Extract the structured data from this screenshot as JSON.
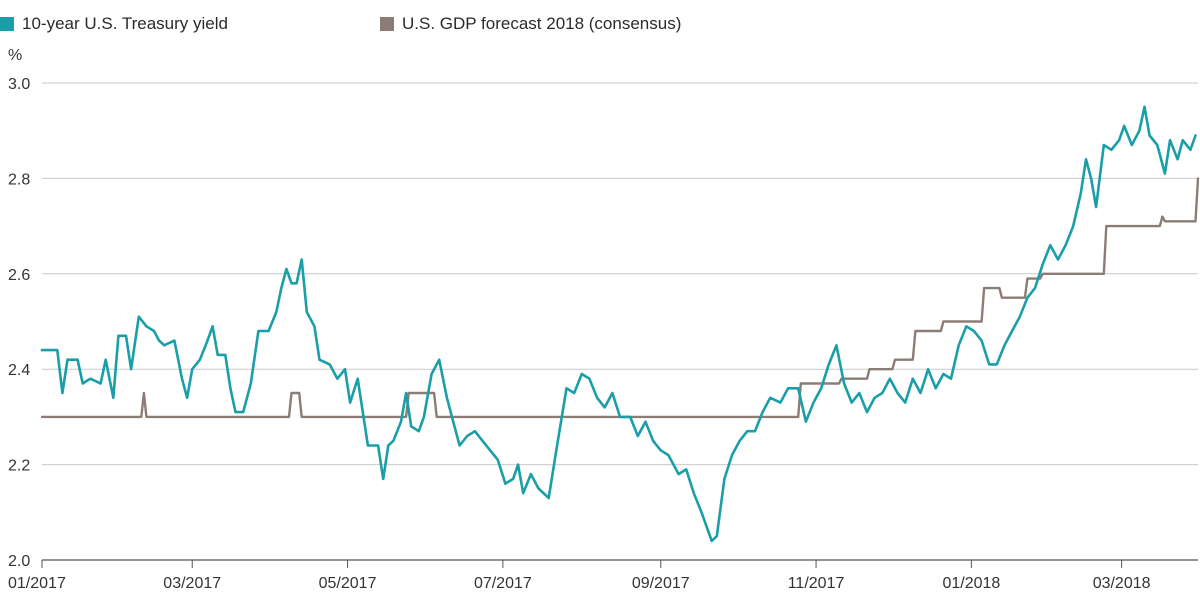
{
  "chart_data": {
    "type": "line",
    "title": "",
    "xlabel": "",
    "ylabel": "%",
    "ylim": [
      2.0,
      3.0
    ],
    "yticks": [
      "2.0",
      "2.2",
      "2.4",
      "2.6",
      "2.8",
      "3.0"
    ],
    "xticks": [
      "01/2017",
      "03/2017",
      "05/2017",
      "07/2017",
      "09/2017",
      "11/2017",
      "01/2018",
      "03/2018"
    ],
    "xrange": [
      "2017-01-01",
      "2018-03-31"
    ],
    "grid": "horizontal",
    "legend": "top-left",
    "series": [
      {
        "name": "10-year U.S. Treasury yield",
        "color": "#1a9ea8",
        "points": [
          [
            "2017-01-01",
            2.44
          ],
          [
            "2017-01-07",
            2.44
          ],
          [
            "2017-01-09",
            2.35
          ],
          [
            "2017-01-11",
            2.42
          ],
          [
            "2017-01-15",
            2.42
          ],
          [
            "2017-01-17",
            2.37
          ],
          [
            "2017-01-20",
            2.38
          ],
          [
            "2017-01-24",
            2.37
          ],
          [
            "2017-01-26",
            2.42
          ],
          [
            "2017-01-29",
            2.34
          ],
          [
            "2017-01-31",
            2.47
          ],
          [
            "2017-02-03",
            2.47
          ],
          [
            "2017-02-05",
            2.4
          ],
          [
            "2017-02-08",
            2.51
          ],
          [
            "2017-02-11",
            2.49
          ],
          [
            "2017-02-14",
            2.48
          ],
          [
            "2017-02-16",
            2.46
          ],
          [
            "2017-02-18",
            2.45
          ],
          [
            "2017-02-22",
            2.46
          ],
          [
            "2017-02-25",
            2.38
          ],
          [
            "2017-02-27",
            2.34
          ],
          [
            "2017-03-01",
            2.4
          ],
          [
            "2017-03-04",
            2.42
          ],
          [
            "2017-03-07",
            2.46
          ],
          [
            "2017-03-09",
            2.49
          ],
          [
            "2017-03-11",
            2.43
          ],
          [
            "2017-03-14",
            2.43
          ],
          [
            "2017-03-16",
            2.36
          ],
          [
            "2017-03-18",
            2.31
          ],
          [
            "2017-03-21",
            2.31
          ],
          [
            "2017-03-24",
            2.37
          ],
          [
            "2017-03-27",
            2.48
          ],
          [
            "2017-03-31",
            2.48
          ],
          [
            "2017-04-03",
            2.52
          ],
          [
            "2017-04-05",
            2.57
          ],
          [
            "2017-04-07",
            2.61
          ],
          [
            "2017-04-09",
            2.58
          ],
          [
            "2017-04-11",
            2.58
          ],
          [
            "2017-04-13",
            2.63
          ],
          [
            "2017-04-15",
            2.52
          ],
          [
            "2017-04-18",
            2.49
          ],
          [
            "2017-04-20",
            2.42
          ],
          [
            "2017-04-24",
            2.41
          ],
          [
            "2017-04-27",
            2.38
          ],
          [
            "2017-04-30",
            2.4
          ],
          [
            "2017-05-02",
            2.33
          ],
          [
            "2017-05-05",
            2.38
          ],
          [
            "2017-05-09",
            2.24
          ],
          [
            "2017-05-13",
            2.24
          ],
          [
            "2017-05-15",
            2.17
          ],
          [
            "2017-05-17",
            2.24
          ],
          [
            "2017-05-19",
            2.25
          ],
          [
            "2017-05-22",
            2.29
          ],
          [
            "2017-05-24",
            2.35
          ],
          [
            "2017-05-26",
            2.28
          ],
          [
            "2017-05-29",
            2.27
          ],
          [
            "2017-05-31",
            2.3
          ],
          [
            "2017-06-03",
            2.39
          ],
          [
            "2017-06-06",
            2.42
          ],
          [
            "2017-06-09",
            2.34
          ],
          [
            "2017-06-12",
            2.28
          ],
          [
            "2017-06-14",
            2.24
          ],
          [
            "2017-06-17",
            2.26
          ],
          [
            "2017-06-20",
            2.27
          ],
          [
            "2017-06-23",
            2.25
          ],
          [
            "2017-06-26",
            2.23
          ],
          [
            "2017-06-29",
            2.21
          ],
          [
            "2017-07-02",
            2.16
          ],
          [
            "2017-07-05",
            2.17
          ],
          [
            "2017-07-07",
            2.2
          ],
          [
            "2017-07-09",
            2.14
          ],
          [
            "2017-07-12",
            2.18
          ],
          [
            "2017-07-15",
            2.15
          ],
          [
            "2017-07-19",
            2.13
          ],
          [
            "2017-07-22",
            2.23
          ],
          [
            "2017-07-26",
            2.36
          ],
          [
            "2017-07-29",
            2.35
          ],
          [
            "2017-08-01",
            2.39
          ],
          [
            "2017-08-04",
            2.38
          ],
          [
            "2017-08-07",
            2.34
          ],
          [
            "2017-08-10",
            2.32
          ],
          [
            "2017-08-13",
            2.35
          ],
          [
            "2017-08-16",
            2.3
          ],
          [
            "2017-08-20",
            2.3
          ],
          [
            "2017-08-23",
            2.26
          ],
          [
            "2017-08-26",
            2.29
          ],
          [
            "2017-08-29",
            2.25
          ],
          [
            "2017-09-01",
            2.23
          ],
          [
            "2017-09-04",
            2.22
          ],
          [
            "2017-09-08",
            2.18
          ],
          [
            "2017-09-11",
            2.19
          ],
          [
            "2017-09-14",
            2.14
          ],
          [
            "2017-09-17",
            2.1
          ],
          [
            "2017-09-19",
            2.07
          ],
          [
            "2017-09-21",
            2.04
          ],
          [
            "2017-09-23",
            2.05
          ],
          [
            "2017-09-26",
            2.17
          ],
          [
            "2017-09-29",
            2.22
          ],
          [
            "2017-10-02",
            2.25
          ],
          [
            "2017-10-05",
            2.27
          ],
          [
            "2017-10-08",
            2.27
          ],
          [
            "2017-10-11",
            2.31
          ],
          [
            "2017-10-14",
            2.34
          ],
          [
            "2017-10-18",
            2.33
          ],
          [
            "2017-10-21",
            2.36
          ],
          [
            "2017-10-25",
            2.36
          ],
          [
            "2017-10-28",
            2.29
          ],
          [
            "2017-10-31",
            2.33
          ],
          [
            "2017-11-03",
            2.36
          ],
          [
            "2017-11-06",
            2.41
          ],
          [
            "2017-11-09",
            2.45
          ],
          [
            "2017-11-12",
            2.37
          ],
          [
            "2017-11-15",
            2.33
          ],
          [
            "2017-11-18",
            2.35
          ],
          [
            "2017-11-21",
            2.31
          ],
          [
            "2017-11-24",
            2.34
          ],
          [
            "2017-11-27",
            2.35
          ],
          [
            "2017-11-30",
            2.38
          ],
          [
            "2017-12-03",
            2.35
          ],
          [
            "2017-12-06",
            2.33
          ],
          [
            "2017-12-09",
            2.38
          ],
          [
            "2017-12-12",
            2.35
          ],
          [
            "2017-12-15",
            2.4
          ],
          [
            "2017-12-18",
            2.36
          ],
          [
            "2017-12-21",
            2.39
          ],
          [
            "2017-12-24",
            2.38
          ],
          [
            "2017-12-27",
            2.45
          ],
          [
            "2017-12-30",
            2.49
          ],
          [
            "2018-01-02",
            2.48
          ],
          [
            "2018-01-05",
            2.46
          ],
          [
            "2018-01-08",
            2.41
          ],
          [
            "2018-01-11",
            2.41
          ],
          [
            "2018-01-14",
            2.45
          ],
          [
            "2018-01-17",
            2.48
          ],
          [
            "2018-01-20",
            2.51
          ],
          [
            "2018-01-23",
            2.55
          ],
          [
            "2018-01-26",
            2.57
          ],
          [
            "2018-01-29",
            2.62
          ],
          [
            "2018-02-01",
            2.66
          ],
          [
            "2018-02-04",
            2.63
          ],
          [
            "2018-02-07",
            2.66
          ],
          [
            "2018-02-10",
            2.7
          ],
          [
            "2018-02-13",
            2.77
          ],
          [
            "2018-02-15",
            2.84
          ],
          [
            "2018-02-17",
            2.8
          ],
          [
            "2018-02-19",
            2.74
          ],
          [
            "2018-02-22",
            2.87
          ],
          [
            "2018-02-25",
            2.86
          ],
          [
            "2018-02-28",
            2.88
          ],
          [
            "2018-03-02",
            2.91
          ],
          [
            "2018-03-05",
            2.87
          ],
          [
            "2018-03-08",
            2.9
          ],
          [
            "2018-03-10",
            2.95
          ],
          [
            "2018-03-12",
            2.89
          ],
          [
            "2018-03-15",
            2.87
          ],
          [
            "2018-03-18",
            2.81
          ],
          [
            "2018-03-20",
            2.88
          ],
          [
            "2018-03-23",
            2.84
          ],
          [
            "2018-03-25",
            2.88
          ],
          [
            "2018-03-28",
            2.86
          ],
          [
            "2018-03-30",
            2.89
          ]
        ]
      },
      {
        "name": "U.S. GDP forecast 2018 (consensus)",
        "color": "#8b7d76",
        "points": [
          [
            "2017-01-01",
            2.3
          ],
          [
            "2017-02-09",
            2.3
          ],
          [
            "2017-02-10",
            2.35
          ],
          [
            "2017-02-11",
            2.3
          ],
          [
            "2017-04-08",
            2.3
          ],
          [
            "2017-04-09",
            2.35
          ],
          [
            "2017-04-12",
            2.35
          ],
          [
            "2017-04-13",
            2.3
          ],
          [
            "2017-05-24",
            2.3
          ],
          [
            "2017-05-25",
            2.35
          ],
          [
            "2017-06-04",
            2.35
          ],
          [
            "2017-06-05",
            2.3
          ],
          [
            "2017-10-25",
            2.3
          ],
          [
            "2017-10-26",
            2.37
          ],
          [
            "2017-11-10",
            2.37
          ],
          [
            "2017-11-11",
            2.38
          ],
          [
            "2017-11-21",
            2.38
          ],
          [
            "2017-11-22",
            2.4
          ],
          [
            "2017-12-01",
            2.4
          ],
          [
            "2017-12-02",
            2.42
          ],
          [
            "2017-12-09",
            2.42
          ],
          [
            "2017-12-10",
            2.48
          ],
          [
            "2017-12-20",
            2.48
          ],
          [
            "2017-12-21",
            2.5
          ],
          [
            "2018-01-05",
            2.5
          ],
          [
            "2018-01-06",
            2.57
          ],
          [
            "2018-01-12",
            2.57
          ],
          [
            "2018-01-13",
            2.55
          ],
          [
            "2018-01-22",
            2.55
          ],
          [
            "2018-01-23",
            2.59
          ],
          [
            "2018-01-28",
            2.59
          ],
          [
            "2018-01-29",
            2.6
          ],
          [
            "2018-02-22",
            2.6
          ],
          [
            "2018-02-23",
            2.7
          ],
          [
            "2018-03-16",
            2.7
          ],
          [
            "2018-03-17",
            2.72
          ],
          [
            "2018-03-18",
            2.71
          ],
          [
            "2018-03-30",
            2.71
          ],
          [
            "2018-03-31",
            2.8
          ]
        ]
      }
    ]
  }
}
